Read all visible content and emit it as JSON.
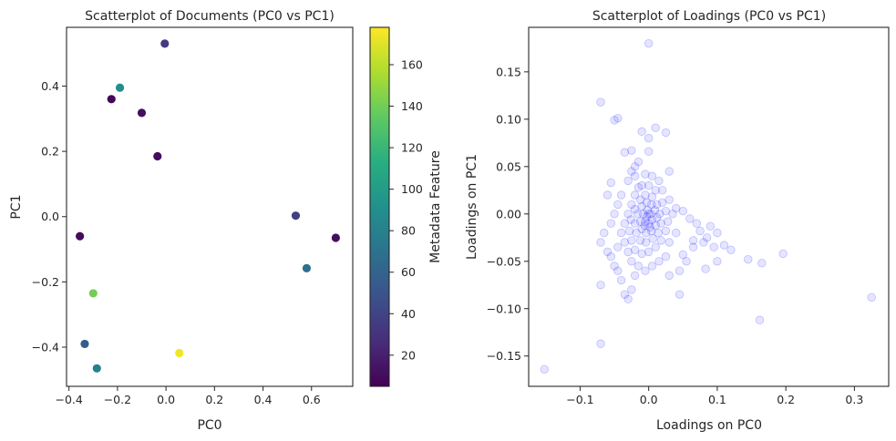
{
  "chart_data": [
    {
      "type": "scatter",
      "title": "Scatterplot of Documents (PC0 vs PC1)",
      "xlabel": "PC0",
      "ylabel": "PC1",
      "xlim": [
        -0.41,
        0.77
      ],
      "ylim": [
        -0.52,
        0.58
      ],
      "xticks": [
        -0.4,
        -0.2,
        0.0,
        0.2,
        0.4,
        0.6
      ],
      "xtick_labels": [
        "−0.4",
        "−0.2",
        "0.0",
        "0.2",
        "0.4",
        "0.6"
      ],
      "yticks": [
        -0.4,
        -0.2,
        0.0,
        0.2,
        0.4
      ],
      "ytick_labels": [
        "−0.4",
        "−0.2",
        "0.0",
        "0.2",
        "0.4"
      ],
      "grid": false,
      "colormap": "viridis",
      "points": [
        {
          "x": -0.005,
          "y": 0.53,
          "c": 35
        },
        {
          "x": -0.19,
          "y": 0.395,
          "c": 90
        },
        {
          "x": -0.225,
          "y": 0.36,
          "c": 8
        },
        {
          "x": -0.1,
          "y": 0.318,
          "c": 12
        },
        {
          "x": -0.035,
          "y": 0.185,
          "c": 10
        },
        {
          "x": 0.535,
          "y": 0.003,
          "c": 38
        },
        {
          "x": 0.7,
          "y": -0.065,
          "c": 12
        },
        {
          "x": -0.355,
          "y": -0.06,
          "c": 10
        },
        {
          "x": 0.58,
          "y": -0.158,
          "c": 68
        },
        {
          "x": -0.3,
          "y": -0.235,
          "c": 140
        },
        {
          "x": -0.335,
          "y": -0.39,
          "c": 55
        },
        {
          "x": 0.055,
          "y": -0.418,
          "c": 175
        },
        {
          "x": -0.285,
          "y": -0.465,
          "c": 80
        }
      ],
      "colorbar": {
        "label": "Metadata Feature",
        "range": [
          5,
          178
        ],
        "ticks": [
          20,
          40,
          60,
          80,
          100,
          120,
          140,
          160
        ],
        "tick_labels": [
          "20",
          "40",
          "60",
          "80",
          "100",
          "120",
          "140",
          "160"
        ]
      }
    },
    {
      "type": "scatter",
      "title": "Scatterplot of Loadings (PC0 vs PC1)",
      "xlabel": "Loadings on PC0",
      "ylabel": "Loadings on PC1",
      "xlim": [
        -0.175,
        0.35
      ],
      "ylim": [
        -0.182,
        0.197
      ],
      "xticks": [
        -0.1,
        0.0,
        0.1,
        0.2,
        0.3
      ],
      "xtick_labels": [
        "−0.1",
        "0.0",
        "0.1",
        "0.2",
        "0.3"
      ],
      "yticks": [
        -0.15,
        -0.1,
        -0.05,
        0.0,
        0.05,
        0.1,
        0.15
      ],
      "ytick_labels": [
        "−0.15",
        "−0.10",
        "−0.05",
        "0.00",
        "0.05",
        "0.10",
        "0.15"
      ],
      "grid": false,
      "marker_color": "#0000ff",
      "marker_alpha": 0.1,
      "points": [
        [
          0.0,
          0.18
        ],
        [
          -0.07,
          0.118
        ],
        [
          -0.045,
          0.101
        ],
        [
          -0.05,
          0.099
        ],
        [
          0.01,
          0.091
        ],
        [
          0.025,
          0.086
        ],
        [
          -0.01,
          0.087
        ],
        [
          0.0,
          0.08
        ],
        [
          -0.025,
          0.067
        ],
        [
          -0.035,
          0.065
        ],
        [
          0.0,
          0.066
        ],
        [
          -0.02,
          0.05
        ],
        [
          -0.015,
          0.055
        ],
        [
          -0.055,
          0.033
        ],
        [
          -0.06,
          0.02
        ],
        [
          0.03,
          0.045
        ],
        [
          0.015,
          0.035
        ],
        [
          0.04,
          0.006
        ],
        [
          0.05,
          0.003
        ],
        [
          0.06,
          -0.005
        ],
        [
          0.07,
          -0.01
        ],
        [
          0.075,
          -0.018
        ],
        [
          0.09,
          -0.013
        ],
        [
          0.1,
          -0.02
        ],
        [
          0.085,
          -0.025
        ],
        [
          0.065,
          -0.028
        ],
        [
          0.08,
          -0.03
        ],
        [
          0.095,
          -0.035
        ],
        [
          0.11,
          -0.033
        ],
        [
          0.12,
          -0.038
        ],
        [
          0.1,
          -0.05
        ],
        [
          0.145,
          -0.048
        ],
        [
          0.165,
          -0.052
        ],
        [
          0.196,
          -0.042
        ],
        [
          0.083,
          -0.058
        ],
        [
          0.055,
          -0.05
        ],
        [
          0.045,
          -0.06
        ],
        [
          0.03,
          -0.065
        ],
        [
          0.05,
          -0.043
        ],
        [
          0.065,
          -0.035
        ],
        [
          0.045,
          -0.085
        ],
        [
          0.162,
          -0.112
        ],
        [
          0.325,
          -0.088
        ],
        [
          -0.07,
          -0.137
        ],
        [
          -0.152,
          -0.164
        ],
        [
          -0.07,
          -0.075
        ],
        [
          -0.07,
          -0.03
        ],
        [
          -0.06,
          -0.04
        ],
        [
          -0.05,
          -0.055
        ],
        [
          -0.04,
          -0.07
        ],
        [
          -0.035,
          -0.085
        ],
        [
          -0.03,
          -0.09
        ],
        [
          -0.025,
          -0.08
        ],
        [
          -0.02,
          -0.065
        ],
        [
          -0.045,
          -0.06
        ],
        [
          -0.055,
          -0.045
        ],
        [
          -0.045,
          -0.035
        ],
        [
          -0.065,
          -0.02
        ],
        [
          -0.055,
          -0.01
        ],
        [
          -0.05,
          0.0
        ],
        [
          -0.045,
          0.01
        ],
        [
          -0.04,
          0.02
        ],
        [
          -0.03,
          0.035
        ],
        [
          -0.025,
          0.045
        ],
        [
          -0.02,
          0.04
        ],
        [
          -0.005,
          0.042
        ],
        [
          0.005,
          0.04
        ],
        [
          0.02,
          0.025
        ],
        [
          0.03,
          0.015
        ],
        [
          0.035,
          0.0
        ],
        [
          0.04,
          -0.02
        ],
        [
          0.03,
          -0.03
        ],
        [
          0.025,
          -0.045
        ],
        [
          0.015,
          -0.05
        ],
        [
          0.005,
          -0.055
        ],
        [
          -0.005,
          -0.06
        ],
        [
          -0.015,
          -0.055
        ],
        [
          -0.025,
          -0.05
        ],
        [
          -0.03,
          -0.04
        ],
        [
          -0.035,
          -0.03
        ],
        [
          -0.04,
          -0.02
        ],
        [
          -0.035,
          -0.01
        ],
        [
          -0.03,
          0.0
        ],
        [
          -0.025,
          0.01
        ],
        [
          -0.02,
          0.02
        ],
        [
          -0.015,
          0.028
        ],
        [
          -0.01,
          0.03
        ],
        [
          0.0,
          0.03
        ],
        [
          0.01,
          0.025
        ],
        [
          0.02,
          0.012
        ],
        [
          0.025,
          0.003
        ],
        [
          0.028,
          -0.008
        ],
        [
          0.025,
          -0.018
        ],
        [
          0.018,
          -0.028
        ],
        [
          0.01,
          -0.035
        ],
        [
          0.0,
          -0.04
        ],
        [
          -0.01,
          -0.042
        ],
        [
          -0.02,
          -0.038
        ],
        [
          -0.025,
          -0.028
        ],
        [
          -0.028,
          -0.018
        ],
        [
          -0.026,
          -0.006
        ],
        [
          -0.02,
          0.005
        ],
        [
          -0.012,
          0.015
        ],
        [
          -0.005,
          0.02
        ],
        [
          0.005,
          0.018
        ],
        [
          0.012,
          0.01
        ],
        [
          0.016,
          0.0
        ],
        [
          0.018,
          -0.01
        ],
        [
          0.014,
          -0.02
        ],
        [
          0.006,
          -0.026
        ],
        [
          -0.004,
          -0.03
        ],
        [
          -0.012,
          -0.028
        ],
        [
          -0.018,
          -0.02
        ],
        [
          -0.02,
          -0.01
        ],
        [
          -0.016,
          0.0
        ],
        [
          -0.01,
          0.008
        ],
        [
          -0.003,
          0.012
        ],
        [
          0.004,
          0.01
        ],
        [
          0.009,
          0.004
        ],
        [
          0.012,
          -0.004
        ],
        [
          0.01,
          -0.012
        ],
        [
          0.004,
          -0.018
        ],
        [
          -0.004,
          -0.02
        ],
        [
          -0.01,
          -0.016
        ],
        [
          -0.012,
          -0.008
        ],
        [
          -0.008,
          0.0
        ],
        [
          -0.002,
          0.004
        ],
        [
          0.003,
          0.0
        ],
        [
          0.005,
          -0.006
        ],
        [
          0.0,
          -0.01
        ],
        [
          -0.005,
          -0.008
        ],
        [
          0.0,
          0.0
        ],
        [
          -0.003,
          -0.003
        ],
        [
          0.002,
          -0.014
        ],
        [
          -0.006,
          -0.012
        ]
      ]
    }
  ]
}
